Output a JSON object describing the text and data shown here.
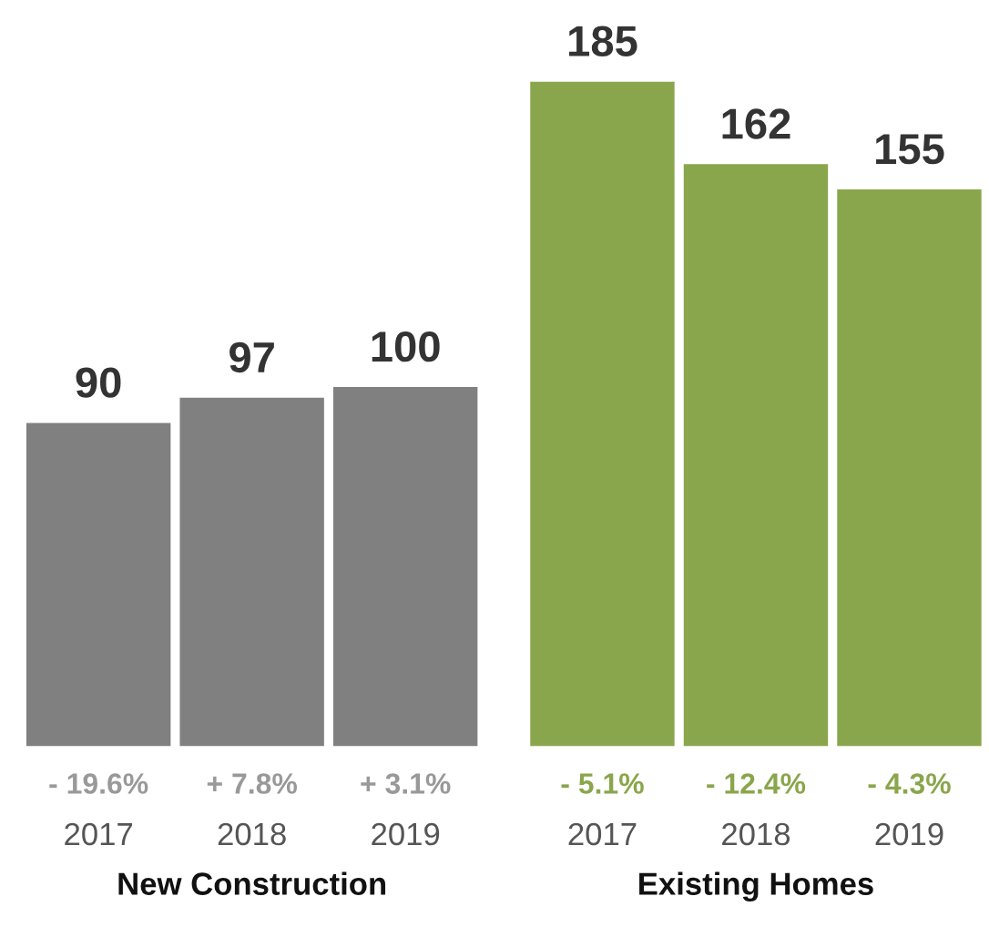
{
  "chart_data": [
    {
      "type": "bar",
      "xlabel": "New Construction",
      "categories": [
        "2017",
        "2018",
        "2019"
      ],
      "values": [
        90,
        97,
        100
      ],
      "color": "#808080",
      "data_labels": true,
      "tick_labels": "x",
      "grid": false,
      "legend": false,
      "annotations": [
        "- 19.6%",
        "+ 7.8%",
        "+ 3.1%"
      ]
    },
    {
      "type": "bar",
      "xlabel": "Existing Homes",
      "categories": [
        "2017",
        "2018",
        "2019"
      ],
      "values": [
        185,
        162,
        155
      ],
      "color": "#8aa64c",
      "data_labels": true,
      "tick_labels": "x",
      "grid": false,
      "legend": false,
      "annotations": [
        "- 5.1%",
        "- 12.4%",
        "- 4.3%"
      ]
    }
  ]
}
